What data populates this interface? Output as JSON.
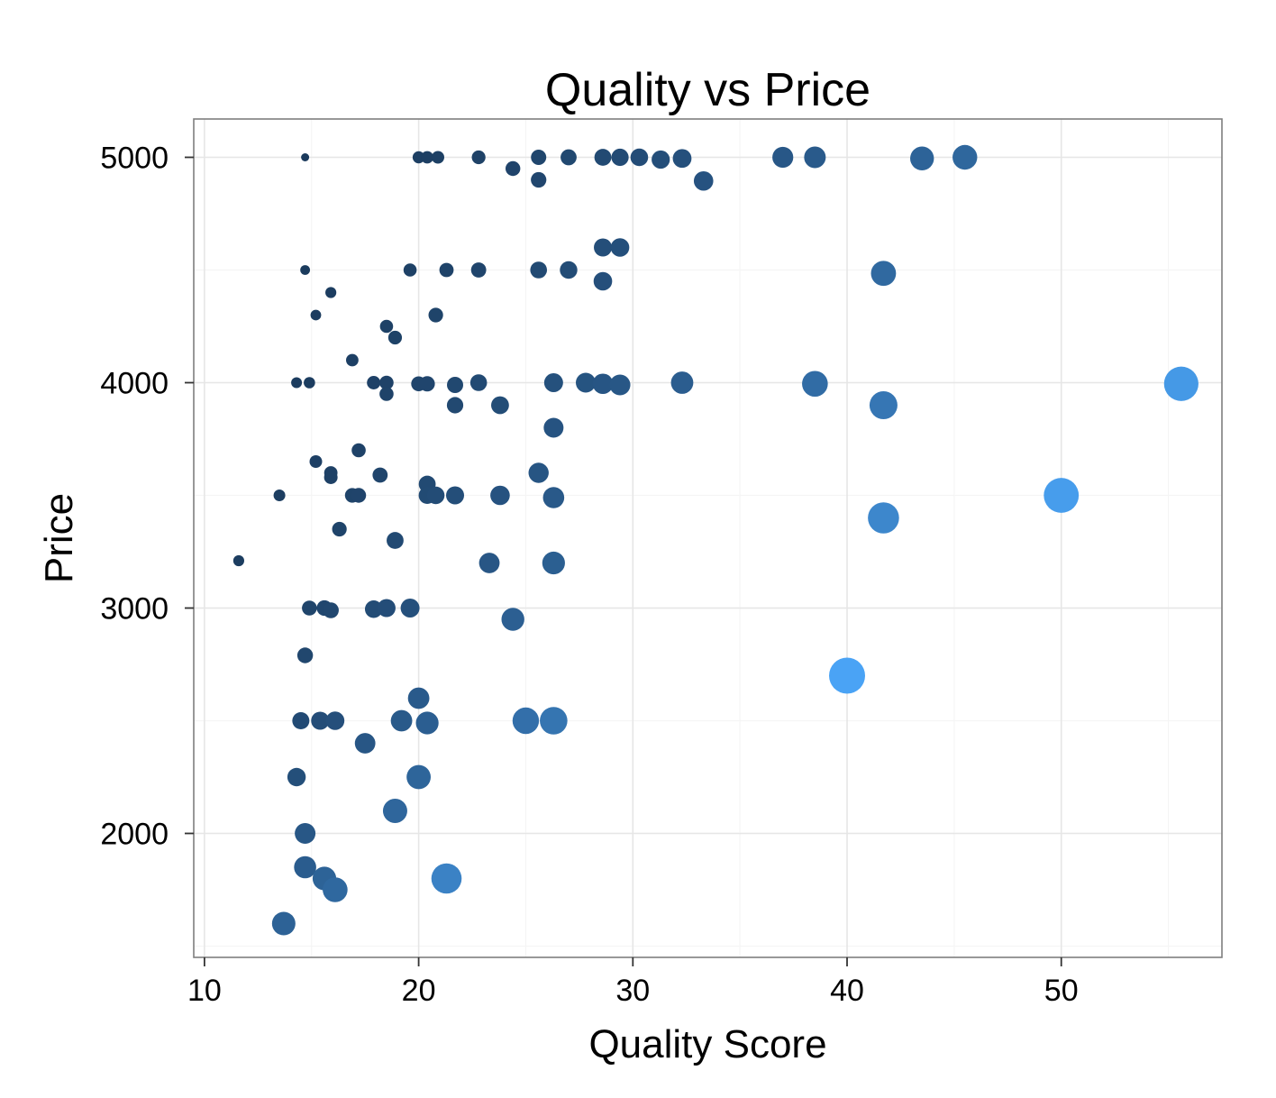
{
  "chart_data": {
    "type": "scatter",
    "title": "Quality vs Price",
    "xlabel": "Quality Score",
    "ylabel": "Price",
    "xlim": [
      9.5,
      57.5
    ],
    "ylim": [
      1450,
      5170
    ],
    "x_ticks": [
      10,
      20,
      30,
      40,
      50
    ],
    "y_ticks": [
      2000,
      3000,
      4000,
      5000
    ],
    "grid": true,
    "legend": "none",
    "encoding": "point size and lightness increase with x / y ratio",
    "colors": {
      "dark": "#1b3a5c",
      "light": "#4aa3f5"
    },
    "points": [
      {
        "x": 14.7,
        "y": 5000
      },
      {
        "x": 20.0,
        "y": 5000
      },
      {
        "x": 20.4,
        "y": 5000
      },
      {
        "x": 20.9,
        "y": 5000
      },
      {
        "x": 22.8,
        "y": 5000
      },
      {
        "x": 24.4,
        "y": 4950
      },
      {
        "x": 25.6,
        "y": 5000
      },
      {
        "x": 25.6,
        "y": 4900
      },
      {
        "x": 27.0,
        "y": 5000
      },
      {
        "x": 28.6,
        "y": 5000
      },
      {
        "x": 29.4,
        "y": 5000
      },
      {
        "x": 30.3,
        "y": 5000
      },
      {
        "x": 31.3,
        "y": 4990
      },
      {
        "x": 32.3,
        "y": 4995
      },
      {
        "x": 33.3,
        "y": 4895
      },
      {
        "x": 37.0,
        "y": 5000
      },
      {
        "x": 38.5,
        "y": 5000
      },
      {
        "x": 43.5,
        "y": 4995
      },
      {
        "x": 45.5,
        "y": 5000
      },
      {
        "x": 14.7,
        "y": 4500
      },
      {
        "x": 19.6,
        "y": 4500
      },
      {
        "x": 21.3,
        "y": 4500
      },
      {
        "x": 22.8,
        "y": 4500
      },
      {
        "x": 25.6,
        "y": 4500
      },
      {
        "x": 27.0,
        "y": 4500
      },
      {
        "x": 28.6,
        "y": 4600
      },
      {
        "x": 29.4,
        "y": 4600
      },
      {
        "x": 28.6,
        "y": 4450
      },
      {
        "x": 41.7,
        "y": 4485
      },
      {
        "x": 15.9,
        "y": 4400
      },
      {
        "x": 15.2,
        "y": 4300
      },
      {
        "x": 20.8,
        "y": 4300
      },
      {
        "x": 18.5,
        "y": 4250
      },
      {
        "x": 18.9,
        "y": 4200
      },
      {
        "x": 16.9,
        "y": 4100
      },
      {
        "x": 14.3,
        "y": 4000
      },
      {
        "x": 14.9,
        "y": 4000
      },
      {
        "x": 17.9,
        "y": 4000
      },
      {
        "x": 18.5,
        "y": 4000
      },
      {
        "x": 18.5,
        "y": 3950
      },
      {
        "x": 20.0,
        "y": 3995
      },
      {
        "x": 20.4,
        "y": 3995
      },
      {
        "x": 21.7,
        "y": 3990
      },
      {
        "x": 22.8,
        "y": 4000
      },
      {
        "x": 21.7,
        "y": 3900
      },
      {
        "x": 23.8,
        "y": 3900
      },
      {
        "x": 26.3,
        "y": 4000
      },
      {
        "x": 27.8,
        "y": 4000
      },
      {
        "x": 28.6,
        "y": 3995
      },
      {
        "x": 29.4,
        "y": 3990
      },
      {
        "x": 32.3,
        "y": 4000
      },
      {
        "x": 38.5,
        "y": 3995
      },
      {
        "x": 41.7,
        "y": 3900
      },
      {
        "x": 55.6,
        "y": 3995
      },
      {
        "x": 26.3,
        "y": 3800
      },
      {
        "x": 17.2,
        "y": 3700
      },
      {
        "x": 15.2,
        "y": 3650
      },
      {
        "x": 15.9,
        "y": 3600
      },
      {
        "x": 15.9,
        "y": 3580
      },
      {
        "x": 18.2,
        "y": 3590
      },
      {
        "x": 25.6,
        "y": 3600
      },
      {
        "x": 20.4,
        "y": 3550
      },
      {
        "x": 13.5,
        "y": 3500
      },
      {
        "x": 16.9,
        "y": 3500
      },
      {
        "x": 17.2,
        "y": 3500
      },
      {
        "x": 20.4,
        "y": 3500
      },
      {
        "x": 20.8,
        "y": 3500
      },
      {
        "x": 21.7,
        "y": 3500
      },
      {
        "x": 23.8,
        "y": 3500
      },
      {
        "x": 26.3,
        "y": 3490
      },
      {
        "x": 50.0,
        "y": 3500
      },
      {
        "x": 41.7,
        "y": 3400
      },
      {
        "x": 16.3,
        "y": 3350
      },
      {
        "x": 18.9,
        "y": 3300
      },
      {
        "x": 11.6,
        "y": 3210
      },
      {
        "x": 23.3,
        "y": 3200
      },
      {
        "x": 26.3,
        "y": 3200
      },
      {
        "x": 14.9,
        "y": 3000
      },
      {
        "x": 15.6,
        "y": 3000
      },
      {
        "x": 15.9,
        "y": 2990
      },
      {
        "x": 17.9,
        "y": 2995
      },
      {
        "x": 18.5,
        "y": 3000
      },
      {
        "x": 19.6,
        "y": 3000
      },
      {
        "x": 24.4,
        "y": 2950
      },
      {
        "x": 14.7,
        "y": 2790
      },
      {
        "x": 40.0,
        "y": 2700
      },
      {
        "x": 20.0,
        "y": 2600
      },
      {
        "x": 14.5,
        "y": 2500
      },
      {
        "x": 15.4,
        "y": 2500
      },
      {
        "x": 16.1,
        "y": 2500
      },
      {
        "x": 19.2,
        "y": 2500
      },
      {
        "x": 20.4,
        "y": 2490
      },
      {
        "x": 25.0,
        "y": 2500
      },
      {
        "x": 26.3,
        "y": 2500
      },
      {
        "x": 17.5,
        "y": 2400
      },
      {
        "x": 14.3,
        "y": 2250
      },
      {
        "x": 20.0,
        "y": 2250
      },
      {
        "x": 18.9,
        "y": 2100
      },
      {
        "x": 14.7,
        "y": 2000
      },
      {
        "x": 14.7,
        "y": 1850
      },
      {
        "x": 15.6,
        "y": 1800
      },
      {
        "x": 16.1,
        "y": 1750
      },
      {
        "x": 21.3,
        "y": 1800
      },
      {
        "x": 13.7,
        "y": 1600
      }
    ]
  }
}
